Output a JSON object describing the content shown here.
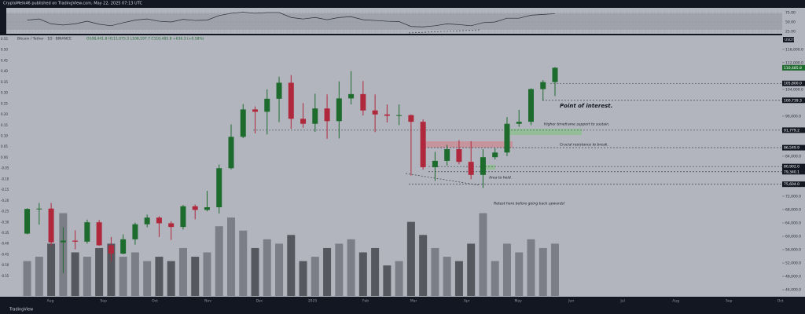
{
  "header": {
    "publisher": "CryptoMelk46 published on TradingView.com, May 22, 2025 07:13 UTC",
    "symbol": "Bitcoin / Tether · 1D · BINANCE",
    "ohlc": "O108,441.8 H111,075.3 L108,197.7 C110,485.8 +636.3 (+0.58%)",
    "currency": "USDT"
  },
  "footer": {
    "brand": "TradingView"
  },
  "chart_data": {
    "type": "candlestick",
    "candles": [
      [
        60800,
        68400,
        60600,
        68200
      ],
      [
        68200,
        70000,
        63500,
        68300
      ],
      [
        68300,
        70000,
        57100,
        58200
      ],
      [
        58200,
        62700,
        49000,
        58700
      ],
      [
        58700,
        61800,
        56100,
        58400
      ],
      [
        58400,
        65000,
        57800,
        64200
      ],
      [
        64200,
        64900,
        57200,
        57300
      ],
      [
        57300,
        59800,
        52500,
        54800
      ],
      [
        54800,
        60600,
        54600,
        59100
      ],
      [
        59100,
        64100,
        57500,
        63600
      ],
      [
        63600,
        66500,
        62700,
        65600
      ],
      [
        65600,
        66000,
        59800,
        63900
      ],
      [
        63900,
        64500,
        58900,
        62800
      ],
      [
        62800,
        69400,
        62000,
        69000
      ],
      [
        69000,
        69500,
        65100,
        67900
      ],
      [
        67900,
        73600,
        67500,
        68700
      ],
      [
        68700,
        81500,
        66800,
        80400
      ],
      [
        80400,
        93500,
        80000,
        89800
      ],
      [
        89800,
        99600,
        89400,
        98000
      ],
      [
        98000,
        98900,
        90800,
        97300
      ],
      [
        97300,
        104000,
        90500,
        101200
      ],
      [
        101200,
        107800,
        94200,
        106000
      ],
      [
        106000,
        108300,
        92200,
        95200
      ],
      [
        95200,
        99900,
        92500,
        93700
      ],
      [
        93700,
        102700,
        91300,
        98300
      ],
      [
        98300,
        102500,
        89200,
        94500
      ],
      [
        94500,
        106400,
        89300,
        101300
      ],
      [
        101300,
        109500,
        99500,
        102600
      ],
      [
        102600,
        106500,
        96200,
        97700
      ],
      [
        97700,
        102500,
        91200,
        96500
      ],
      [
        96500,
        99500,
        94100,
        96100
      ],
      [
        96100,
        99500,
        93300,
        96300
      ],
      [
        96300,
        96500,
        78200,
        94300
      ],
      [
        94300,
        95000,
        80000,
        80700
      ],
      [
        80700,
        85300,
        76600,
        82600
      ],
      [
        82600,
        87400,
        81200,
        86100
      ],
      [
        86100,
        88800,
        81600,
        82300
      ],
      [
        82300,
        88500,
        77100,
        78400
      ],
      [
        78400,
        86100,
        74500,
        83700
      ],
      [
        83700,
        86400,
        83000,
        85100
      ],
      [
        85100,
        95700,
        84000,
        93700
      ],
      [
        93700,
        97900,
        92800,
        94300
      ],
      [
        94300,
        104300,
        93300,
        104100
      ],
      [
        104100,
        106800,
        100800,
        106200
      ],
      [
        106200,
        110700,
        102000,
        110485.8
      ]
    ],
    "up_color": "#1e6b2e",
    "down_color": "#b0283c",
    "volume": [
      40,
      45,
      60,
      95,
      50,
      45,
      55,
      60,
      45,
      50,
      40,
      45,
      40,
      55,
      45,
      50,
      80,
      90,
      75,
      55,
      65,
      60,
      70,
      40,
      45,
      55,
      60,
      65,
      50,
      55,
      35,
      40,
      85,
      70,
      55,
      45,
      40,
      60,
      95,
      40,
      60,
      50,
      65,
      55,
      60
    ],
    "volume_lim": [
      0,
      300
    ],
    "ylim": [
      41900,
      120200
    ],
    "yticks": [
      {
        "value": 44000,
        "label": "44,000.0"
      },
      {
        "value": 48000,
        "label": "48,000.0"
      },
      {
        "value": 52000,
        "label": "52,000.0"
      },
      {
        "value": 56000,
        "label": "56,000.0"
      },
      {
        "value": 60000,
        "label": "60,000.0"
      },
      {
        "value": 64000,
        "label": "64,000.0"
      },
      {
        "value": 68000,
        "label": "68,000.0"
      },
      {
        "value": 72000,
        "label": "72,000.0"
      },
      {
        "value": 84000,
        "label": "84,000.0"
      },
      {
        "value": 96000,
        "label": "96,000.0"
      },
      {
        "value": 104000,
        "label": "104,000.0"
      },
      {
        "value": 112000,
        "label": "112,000.0"
      },
      {
        "value": 116000,
        "label": "116,000.0"
      }
    ],
    "levels": [
      {
        "value": 110485.8,
        "label": "110,485.8"
      },
      {
        "value": 105800,
        "label": "105,800.0"
      },
      {
        "value": 100739.3,
        "label": "100,739.3"
      },
      {
        "value": 91779.2,
        "label": "91,779.2"
      },
      {
        "value": 86549.9,
        "label": "86,549.9"
      },
      {
        "value": 80902,
        "label": "80,902.0"
      },
      {
        "value": 79340.1,
        "label": "79,340.1"
      },
      {
        "value": 75604,
        "label": "75,604.0"
      }
    ],
    "y2lim": [
      -0.645,
      0.568
    ],
    "y2ticks": [
      0.55,
      {
        "value": 0.5,
        "label": "0.50"
      },
      0.45,
      {
        "value": 0.4,
        "label": "0.40"
      },
      0.35,
      {
        "value": 0.3,
        "label": "0.30"
      },
      0.25,
      {
        "value": 0.2,
        "label": "0.20"
      },
      0.15,
      {
        "value": 0.1,
        "label": "0.10"
      },
      0.05,
      {
        "value": 0,
        "label": "0.00"
      },
      -0.05,
      {
        "value": -0.1,
        "label": "-0.10"
      },
      -0.15,
      {
        "value": -0.2,
        "label": "-0.20"
      },
      -0.25,
      {
        "value": -0.3,
        "label": "-0.30"
      },
      -0.35,
      {
        "value": -0.4,
        "label": "-0.40"
      },
      -0.45,
      {
        "value": -0.5,
        "label": "-0.50"
      },
      -0.55
    ],
    "rsi": [
      55,
      58,
      45,
      42,
      45,
      52,
      44,
      40,
      48,
      55,
      58,
      52,
      50,
      57,
      54,
      55,
      67,
      73,
      76,
      73,
      75,
      75,
      62,
      58,
      62,
      56,
      62,
      64,
      56,
      54,
      52,
      51,
      38,
      37,
      40,
      45,
      43,
      40,
      48,
      50,
      60,
      60,
      68,
      70,
      72
    ],
    "rsilim": [
      18.75,
      87.5
    ],
    "rsiticks": [
      {
        "value": 75,
        "label": "75.00"
      },
      {
        "value": 50,
        "label": "50.00"
      },
      {
        "value": 25,
        "label": "25.00"
      }
    ],
    "xlabels": [
      "Aug",
      "Sep",
      "Oct",
      "Nov",
      "Dec",
      "2025",
      "Feb",
      "Mar",
      "Apr",
      "May",
      "Jun",
      "Jul",
      "Aug",
      "Sep",
      "Oct"
    ],
    "annotations": [
      "Point of interest.",
      "Higher timeframe support to sustain.",
      "Crucial resistance to break.",
      "Area to hold.",
      "Retest here before going back upwards!"
    ]
  }
}
